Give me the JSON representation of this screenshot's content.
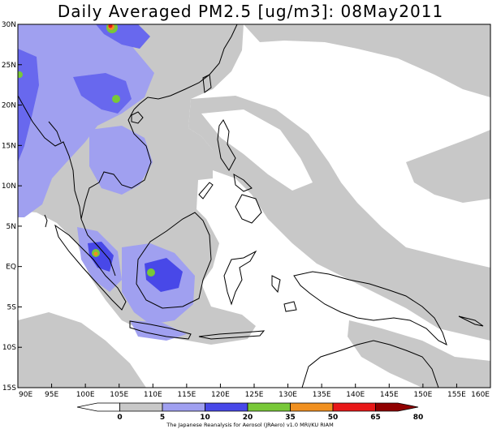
{
  "title": "Daily Averaged PM2.5 [ug/m3]: 08May2011",
  "credit": "The Japanese Reanalysis for Aerosol (JRAero) v1.0 MRI/KU RIAM",
  "map": {
    "lon_range": [
      90,
      160
    ],
    "lat_range": [
      -15,
      30
    ],
    "lon_ticks": [
      "90E",
      "95E",
      "100E",
      "105E",
      "110E",
      "115E",
      "120E",
      "125E",
      "130E",
      "135E",
      "140E",
      "145E",
      "150E",
      "155E",
      "160E"
    ],
    "lat_ticks": [
      "15S",
      "10S",
      "5S",
      "EQ",
      "5N",
      "10N",
      "15N",
      "20N",
      "25N",
      "30N"
    ]
  },
  "colorbar": {
    "levels": [
      "0",
      "5",
      "10",
      "20",
      "35",
      "50",
      "65",
      "80"
    ],
    "colors": [
      "#ffffff",
      "#c8c8c8",
      "#a0a0f0",
      "#4848e8",
      "#78c838",
      "#f09020",
      "#e81818",
      "#900000"
    ]
  },
  "palette": {
    "level_5": "#c8c8c8",
    "level_10": "#a0a0f0",
    "level_20": "#4848e8",
    "level_35": "#78c838",
    "level_50": "#f09020",
    "level_65": "#e81818",
    "level_80": "#900000"
  }
}
